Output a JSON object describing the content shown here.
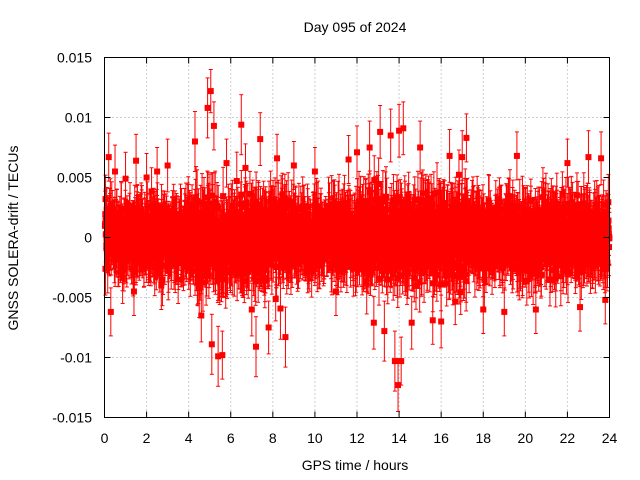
{
  "chart_data": {
    "type": "scatter",
    "title": "Day 095 of 2024",
    "xlabel": "GPS time / hours",
    "ylabel": "GNSS SOLERA-drift / TECUs",
    "xlim": [
      0,
      24
    ],
    "ylim": [
      -0.015,
      0.015
    ],
    "xticks": [
      "0",
      "2",
      "4",
      "6",
      "8",
      "10",
      "12",
      "14",
      "16",
      "18",
      "20",
      "22",
      "24"
    ],
    "yticks": [
      "-0.015",
      "-0.01",
      "-0.005",
      "0",
      "0.005",
      "0.01",
      "0.015"
    ],
    "grid": true,
    "legend": "none",
    "series": [
      {
        "color": "#ff0000",
        "marker": "square",
        "error_bars": true,
        "sampling_interval_hours": 0.0083333,
        "typical_error": 0.0022,
        "points": [
          [
            0.05,
            0.0032,
            0.002
          ],
          [
            0.2,
            0.0067,
            0.002
          ],
          [
            0.3,
            -0.0062,
            0.002
          ],
          [
            0.5,
            0.0055,
            0.0022
          ],
          [
            1.0,
            0.0049,
            0.0022
          ],
          [
            1.4,
            -0.0045,
            0.002
          ],
          [
            1.5,
            0.0064,
            0.0022
          ],
          [
            2.0,
            0.005,
            0.002
          ],
          [
            2.5,
            0.0055,
            0.002
          ],
          [
            2.7,
            -0.004,
            0.002
          ],
          [
            3.0,
            0.006,
            0.0022
          ],
          [
            3.5,
            -0.0035,
            0.002
          ],
          [
            4.3,
            0.008,
            0.0025
          ],
          [
            4.6,
            -0.0065,
            0.0022
          ],
          [
            4.9,
            0.0108,
            0.0025
          ],
          [
            5.05,
            0.0122,
            0.0018
          ],
          [
            5.1,
            -0.0089,
            0.0025
          ],
          [
            5.2,
            0.0093,
            0.002
          ],
          [
            5.4,
            -0.0099,
            0.0025
          ],
          [
            5.6,
            -0.0098,
            0.002
          ],
          [
            5.8,
            0.0062,
            0.002
          ],
          [
            6.5,
            0.0094,
            0.0025
          ],
          [
            6.7,
            0.0058,
            0.002
          ],
          [
            7.0,
            -0.006,
            0.0022
          ],
          [
            7.2,
            -0.0091,
            0.0025
          ],
          [
            7.4,
            0.0082,
            0.0022
          ],
          [
            7.8,
            -0.0075,
            0.0022
          ],
          [
            8.2,
            0.0066,
            0.002
          ],
          [
            8.6,
            -0.0083,
            0.0025
          ],
          [
            9.0,
            0.006,
            0.002
          ],
          [
            10.0,
            0.0055,
            0.002
          ],
          [
            11.0,
            -0.0045,
            0.002
          ],
          [
            11.6,
            0.0065,
            0.002
          ],
          [
            12.0,
            0.0071,
            0.0022
          ],
          [
            12.6,
            0.0075,
            0.0022
          ],
          [
            12.8,
            -0.0071,
            0.0022
          ],
          [
            13.1,
            0.0088,
            0.0022
          ],
          [
            13.3,
            -0.0078,
            0.0025
          ],
          [
            13.6,
            0.0085,
            0.0022
          ],
          [
            13.8,
            -0.0103,
            0.0025
          ],
          [
            13.95,
            -0.0123,
            0.0022
          ],
          [
            14.0,
            0.0089,
            0.0022
          ],
          [
            14.1,
            -0.0103,
            0.002
          ],
          [
            14.2,
            0.0091,
            0.0022
          ],
          [
            14.6,
            -0.0071,
            0.0022
          ],
          [
            15.0,
            0.0075,
            0.0022
          ],
          [
            15.6,
            -0.0069,
            0.002
          ],
          [
            16.0,
            -0.007,
            0.0022
          ],
          [
            16.4,
            0.0068,
            0.0022
          ],
          [
            17.0,
            0.0067,
            0.0022
          ],
          [
            17.2,
            0.0083,
            0.002
          ],
          [
            18.0,
            -0.006,
            0.002
          ],
          [
            19.0,
            -0.0062,
            0.002
          ],
          [
            19.6,
            0.0068,
            0.002
          ],
          [
            20.5,
            -0.006,
            0.002
          ],
          [
            22.0,
            0.0062,
            0.002
          ],
          [
            22.6,
            -0.0058,
            0.002
          ],
          [
            23.0,
            0.0067,
            0.0022
          ],
          [
            23.6,
            0.0066,
            0.0022
          ],
          [
            23.8,
            -0.0052,
            0.002
          ]
        ]
      }
    ]
  }
}
